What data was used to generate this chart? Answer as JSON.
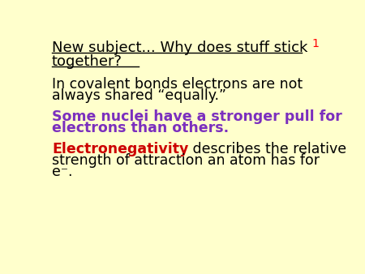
{
  "background_color": "#FFFFCC",
  "slide_number": "1",
  "slide_number_color": "#FF0000",
  "slide_number_fontsize": 10,
  "title_line1": "New subject... Why does stuff stick",
  "title_line2": "together?",
  "title_color": "#000000",
  "title_fontsize": 13,
  "title_bold": false,
  "body1_line1": "In covalent bonds electrons are not",
  "body1_line2": "always shared “equally.”",
  "body1_color": "#000000",
  "body1_fontsize": 12.5,
  "body2_line1": "Some nuclei have a stronger pull for",
  "body2_line2": "electrons than others.",
  "body2_color": "#7B2FBE",
  "body2_fontsize": 12.5,
  "body2_bold": true,
  "body3_prefix": "Electronegativity",
  "body3_prefix_color": "#CC0000",
  "body3_prefix_fontsize": 12.5,
  "body3_prefix_bold": true,
  "body3_suffix_line1": " describes the relative",
  "body3_suffix_line2": "strength of attraction an atom has for",
  "body3_suffix_line3": "e⁻.",
  "body3_suffix_color": "#000000",
  "body3_suffix_fontsize": 12.5
}
